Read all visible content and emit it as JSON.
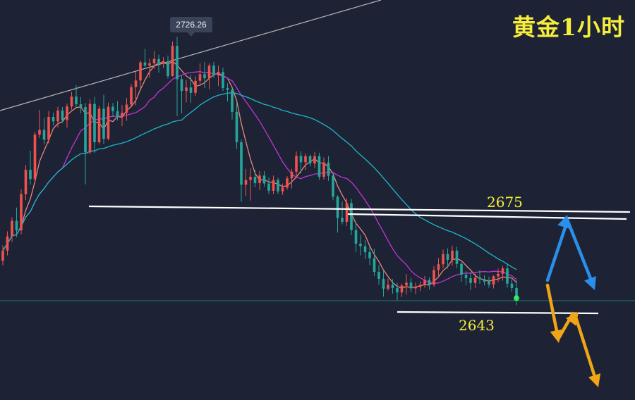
{
  "header": {
    "title": "黄金1小时"
  },
  "chart_data": {
    "type": "candlestick",
    "title": "黄金1小时",
    "timeframe": "1H",
    "price_tag": "2726.26",
    "high_price": 2726.26,
    "levels": [
      {
        "label": "2675",
        "price": 2675
      },
      {
        "label": "2643",
        "price": 2643
      }
    ],
    "ohlc": [
      [
        2655.6,
        2660.5,
        2654.2,
        2658.8
      ],
      [
        2658.8,
        2664.9,
        2657.3,
        2663.3
      ],
      [
        2663.3,
        2669.3,
        2661.5,
        2668.2
      ],
      [
        2668.2,
        2672.4,
        2663.1,
        2665.2
      ],
      [
        2665.2,
        2678.1,
        2664.0,
        2676.6
      ],
      [
        2676.6,
        2685.8,
        2674.7,
        2684.3
      ],
      [
        2684.3,
        2690.3,
        2679.6,
        2681.4
      ],
      [
        2681.4,
        2696.3,
        2679.9,
        2695.4
      ],
      [
        2695.4,
        2703.2,
        2694.3,
        2696.9
      ],
      [
        2696.9,
        2700.7,
        2692.3,
        2693.8
      ],
      [
        2693.8,
        2702.8,
        2692.6,
        2701.0
      ],
      [
        2701.0,
        2702.3,
        2698.3,
        2699.6
      ],
      [
        2699.6,
        2704.2,
        2697.7,
        2703.0
      ],
      [
        2703.0,
        2704.1,
        2699.2,
        2700.0
      ],
      [
        2700.0,
        2705.2,
        2697.6,
        2704.3
      ],
      [
        2704.3,
        2708.9,
        2703.3,
        2707.4
      ],
      [
        2707.4,
        2711.0,
        2703.9,
        2705.0
      ],
      [
        2705.0,
        2707.3,
        2702.1,
        2704.1
      ],
      [
        2704.1,
        2705.4,
        2679.7,
        2689.8
      ],
      [
        2689.8,
        2706.6,
        2689.2,
        2705.1
      ],
      [
        2705.1,
        2707.3,
        2689.7,
        2693.0
      ],
      [
        2693.0,
        2704.5,
        2692.3,
        2703.6
      ],
      [
        2703.6,
        2708.0,
        2692.5,
        2694.1
      ],
      [
        2694.1,
        2705.5,
        2693.6,
        2704.2
      ],
      [
        2704.2,
        2705.4,
        2701.1,
        2702.8
      ],
      [
        2702.8,
        2706.0,
        2699.9,
        2700.9
      ],
      [
        2700.9,
        2704.7,
        2698.1,
        2702.3
      ],
      [
        2702.3,
        2707.0,
        2699.8,
        2704.9
      ],
      [
        2704.9,
        2711.4,
        2704.4,
        2710.4
      ],
      [
        2710.4,
        2715.7,
        2704.7,
        2712.5
      ],
      [
        2712.5,
        2718.8,
        2710.2,
        2718.2
      ],
      [
        2718.2,
        2722.5,
        2716.7,
        2717.2
      ],
      [
        2717.2,
        2719.4,
        2713.3,
        2717.9
      ],
      [
        2717.9,
        2721.8,
        2716.2,
        2719.3
      ],
      [
        2719.3,
        2720.6,
        2715.0,
        2717.8
      ],
      [
        2717.8,
        2719.9,
        2716.5,
        2718.6
      ],
      [
        2718.6,
        2720.4,
        2713.1,
        2713.9
      ],
      [
        2713.9,
        2724.8,
        2713.7,
        2723.4
      ],
      [
        2723.4,
        2726.26,
        2701.3,
        2712.9
      ],
      [
        2712.9,
        2714.0,
        2702.1,
        2709.2
      ],
      [
        2709.2,
        2712.7,
        2705.6,
        2710.3
      ],
      [
        2710.3,
        2714.3,
        2705.5,
        2708.6
      ],
      [
        2708.6,
        2713.8,
        2707.6,
        2712.4
      ],
      [
        2712.4,
        2717.9,
        2711.4,
        2714.5
      ],
      [
        2714.5,
        2718.3,
        2710.1,
        2713.2
      ],
      [
        2713.2,
        2718.0,
        2709.7,
        2717.2
      ],
      [
        2717.2,
        2718.4,
        2713.3,
        2714.1
      ],
      [
        2714.1,
        2717.2,
        2710.7,
        2715.2
      ],
      [
        2715.2,
        2716.5,
        2709.2,
        2710.1
      ],
      [
        2710.1,
        2711.6,
        2705.9,
        2709.5
      ],
      [
        2709.5,
        2710.2,
        2700.2,
        2702.6
      ],
      [
        2702.6,
        2705.4,
        2690.9,
        2693.0
      ],
      [
        2693.0,
        2693.9,
        2674.2,
        2679.6
      ],
      [
        2679.6,
        2684.6,
        2676.0,
        2681.1
      ],
      [
        2681.1,
        2684.8,
        2674.6,
        2682.1
      ],
      [
        2682.1,
        2684.3,
        2678.8,
        2680.1
      ],
      [
        2680.1,
        2683.9,
        2677.9,
        2682.5
      ],
      [
        2682.5,
        2683.9,
        2679.0,
        2680.0
      ],
      [
        2680.0,
        2681.9,
        2676.7,
        2677.7
      ],
      [
        2677.7,
        2682.5,
        2676.7,
        2681.1
      ],
      [
        2681.1,
        2681.8,
        2676.6,
        2677.5
      ],
      [
        2677.5,
        2680.0,
        2676.4,
        2678.7
      ],
      [
        2678.7,
        2682.3,
        2678.0,
        2681.6
      ],
      [
        2681.6,
        2684.6,
        2678.4,
        2683.7
      ],
      [
        2683.7,
        2690.1,
        2681.6,
        2688.7
      ],
      [
        2688.7,
        2690.2,
        2683.1,
        2686.7
      ],
      [
        2686.7,
        2689.5,
        2684.2,
        2688.6
      ],
      [
        2688.6,
        2689.1,
        2685.4,
        2686.3
      ],
      [
        2686.3,
        2690.0,
        2684.9,
        2688.6
      ],
      [
        2688.6,
        2689.7,
        2681.1,
        2682.1
      ],
      [
        2682.1,
        2688.2,
        2681.2,
        2686.6
      ],
      [
        2686.6,
        2688.6,
        2680.8,
        2682.4
      ],
      [
        2682.4,
        2683.3,
        2674.7,
        2675.8
      ],
      [
        2675.8,
        2676.3,
        2664.5,
        2669.1
      ],
      [
        2669.1,
        2674.3,
        2667.1,
        2667.9
      ],
      [
        2667.9,
        2675.3,
        2666.6,
        2673.8
      ],
      [
        2673.8,
        2675.1,
        2663.7,
        2665.3
      ],
      [
        2665.3,
        2667.5,
        2658.3,
        2661.0
      ],
      [
        2661.0,
        2663.8,
        2657.3,
        2660.2
      ],
      [
        2660.2,
        2662.1,
        2656.1,
        2658.3
      ],
      [
        2658.3,
        2660.2,
        2654.2,
        2656.4
      ],
      [
        2656.4,
        2659.4,
        2650.8,
        2652.1
      ],
      [
        2652.1,
        2654.1,
        2648.0,
        2649.9
      ],
      [
        2649.9,
        2652.4,
        2644.3,
        2646.8
      ],
      [
        2646.8,
        2650.0,
        2646.2,
        2648.0
      ],
      [
        2648.0,
        2649.8,
        2645.2,
        2647.0
      ],
      [
        2647.0,
        2648.6,
        2643.1,
        2645.6
      ],
      [
        2645.6,
        2648.4,
        2644.2,
        2647.8
      ],
      [
        2647.8,
        2651.4,
        2644.9,
        2648.7
      ],
      [
        2648.7,
        2650.3,
        2645.7,
        2646.9
      ],
      [
        2646.9,
        2648.7,
        2645.1,
        2647.3
      ],
      [
        2647.3,
        2649.1,
        2646.0,
        2648.0
      ],
      [
        2648.0,
        2650.8,
        2647.1,
        2649.5
      ],
      [
        2649.5,
        2650.4,
        2646.5,
        2648.0
      ],
      [
        2648.0,
        2653.9,
        2647.4,
        2652.7
      ],
      [
        2652.7,
        2656.4,
        2650.6,
        2654.5
      ],
      [
        2654.5,
        2659.1,
        2653.2,
        2657.7
      ],
      [
        2657.7,
        2659.5,
        2653.2,
        2655.9
      ],
      [
        2655.9,
        2660.4,
        2654.0,
        2658.8
      ],
      [
        2658.8,
        2660.0,
        2653.3,
        2654.6
      ],
      [
        2654.6,
        2655.2,
        2649.0,
        2651.2
      ],
      [
        2651.2,
        2652.3,
        2647.9,
        2650.1
      ],
      [
        2650.1,
        2652.0,
        2646.4,
        2648.6
      ],
      [
        2648.6,
        2651.5,
        2647.0,
        2650.3
      ],
      [
        2650.3,
        2652.6,
        2648.3,
        2649.8
      ],
      [
        2649.8,
        2651.0,
        2647.8,
        2649.0
      ],
      [
        2649.0,
        2650.6,
        2647.1,
        2648.1
      ],
      [
        2648.1,
        2651.0,
        2646.9,
        2650.7
      ],
      [
        2650.7,
        2653.1,
        2648.9,
        2651.5
      ],
      [
        2651.5,
        2654.0,
        2649.3,
        2653.2
      ],
      [
        2653.2,
        2654.8,
        2647.1,
        2648.4
      ],
      [
        2648.4,
        2649.7,
        2645.9,
        2647.0
      ],
      [
        2647.0,
        2649.5,
        2641.6,
        2643.8
      ]
    ]
  },
  "projections": {
    "bull_color": "#2a8fe8",
    "bear_color": "#f0a418"
  },
  "colors": {
    "background": "#1d2335",
    "up": "#ef5350",
    "down": "#26a69a",
    "ma_fast": "#e8877a",
    "ma_mid": "#c234d6",
    "ma_slow": "#1fb6c9",
    "trendline": "#b7b7b7",
    "level_line": "#ffffff",
    "level_text": "#f6ee3a"
  }
}
